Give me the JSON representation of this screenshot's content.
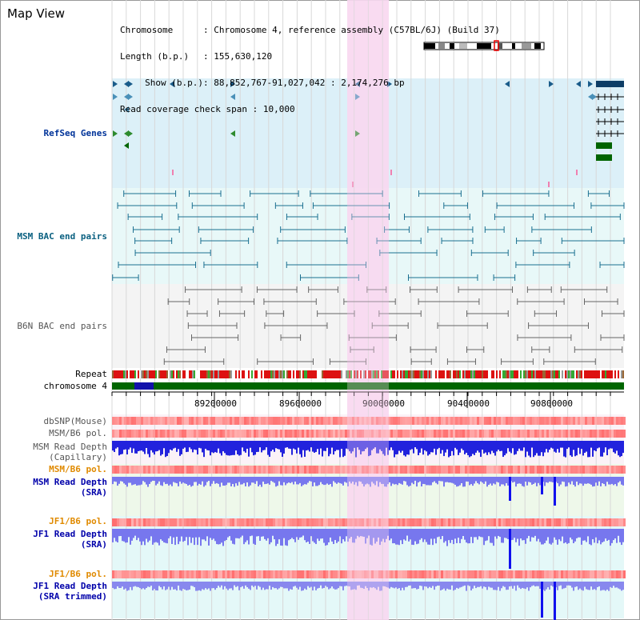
{
  "page": {
    "title": "Map View"
  },
  "info": [
    {
      "label": "Chromosome",
      "sep": ":",
      "value": "Chromosome 4, reference assembly (C57BL/6J) (Build 37)"
    },
    {
      "label": "Length (b.p.)",
      "sep": ":",
      "value": "155,630,120"
    },
    {
      "label": "Show (b.p.)",
      "sep": ":",
      "value": "88,852,767-91,027,042 : 2,174,276 bp"
    },
    {
      "label": "Read coverage check span",
      "sep": ":",
      "value": "10,000"
    }
  ],
  "tracks": {
    "refseq": "RefSeq Genes",
    "msm_bac": "MSM BAC end pairs",
    "b6n_bac": "B6N BAC end pairs",
    "repeat": "Repeat",
    "chromosome": "chromosome 4",
    "dbsnp": "dbSNP(Mouse)",
    "msm_b6_pol_1": "MSM/B6 pol.",
    "msm_read_depth_cap": "MSM Read Depth\n(Capillary)",
    "msm_b6_pol_2": "MSM/B6 pol.",
    "msm_read_depth_sra": "MSM Read Depth\n(SRA)",
    "jf1_b6_pol_1": "JF1/B6 pol.",
    "jf1_read_depth_sra": "JF1 Read Depth\n(SRA)",
    "jf1_b6_pol_2": "JF1/B6 pol.",
    "jf1_read_depth_trim": "JF1 Read Depth\n(SRA trimmed)"
  },
  "axis": {
    "ticks": [
      "89200000",
      "89600000",
      "90000000",
      "90400000",
      "90800000"
    ]
  },
  "colors": {
    "refseq_bg": "#dcf0f8",
    "bac_bg": "#e8f8f8",
    "highlight": "#f8d8f0",
    "gene": "#1a5c8a",
    "chromosome": "#006600",
    "depth": "#2222ee",
    "sra": "#7777ee"
  }
}
